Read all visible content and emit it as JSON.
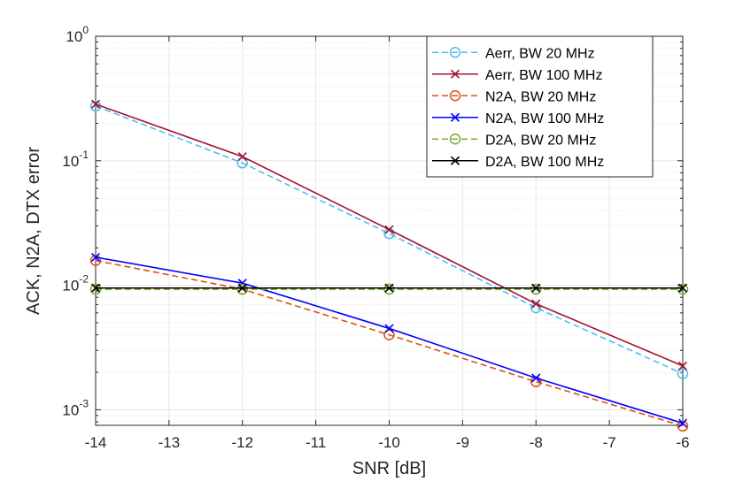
{
  "chart_data": {
    "type": "line",
    "title": "",
    "xlabel": "SNR [dB]",
    "ylabel": "ACK, N2A, DTX error",
    "xlim": [
      -14,
      -6
    ],
    "ylim": [
      0.00075,
      1
    ],
    "yscale": "log",
    "grid": true,
    "minor_grid": true,
    "legend_position": "top-right",
    "x_ticks": [
      -14,
      -13,
      -12,
      -11,
      -10,
      -9,
      -8,
      -7,
      -6
    ],
    "x_tick_labels": [
      "-14",
      "-13",
      "-12",
      "-11",
      "-10",
      "-9",
      "-8",
      "-7",
      "-6"
    ],
    "y_ticks": [
      {
        "value": 1,
        "base": "10",
        "exp": "0"
      },
      {
        "value": 0.1,
        "base": "10",
        "exp": "-1"
      },
      {
        "value": 0.01,
        "base": "10",
        "exp": "-2"
      },
      {
        "value": 0.001,
        "base": "10",
        "exp": "-3"
      }
    ],
    "x": [
      -14,
      -12,
      -10,
      -8,
      -6
    ],
    "series": [
      {
        "name": "Aerr, BW 20 MHz",
        "values": [
          0.275,
          0.096,
          0.026,
          0.0066,
          0.00195
        ],
        "color": "#4dbeee",
        "dash": "dashed",
        "marker": "circle"
      },
      {
        "name": "Aerr, BW 100 MHz",
        "values": [
          0.285,
          0.108,
          0.028,
          0.0071,
          0.00225
        ],
        "color": "#a2142f",
        "dash": "solid",
        "marker": "x"
      },
      {
        "name": "N2A, BW 20 MHz",
        "values": [
          0.0158,
          0.0093,
          0.004,
          0.00168,
          0.00074
        ],
        "color": "#d95319",
        "dash": "dashed",
        "marker": "circle"
      },
      {
        "name": "N2A, BW 100 MHz",
        "values": [
          0.0168,
          0.0104,
          0.0045,
          0.0018,
          0.00078
        ],
        "color": "#0000ff",
        "dash": "solid",
        "marker": "x"
      },
      {
        "name": "D2A, BW 20 MHz",
        "values": [
          0.0093,
          0.0093,
          0.0093,
          0.0093,
          0.0093
        ],
        "color": "#77ac30",
        "dash": "dashed",
        "marker": "circle"
      },
      {
        "name": "D2A, BW 100 MHz",
        "values": [
          0.0095,
          0.0095,
          0.0095,
          0.0095,
          0.0095
        ],
        "color": "#000000",
        "dash": "solid",
        "marker": "x"
      }
    ]
  }
}
